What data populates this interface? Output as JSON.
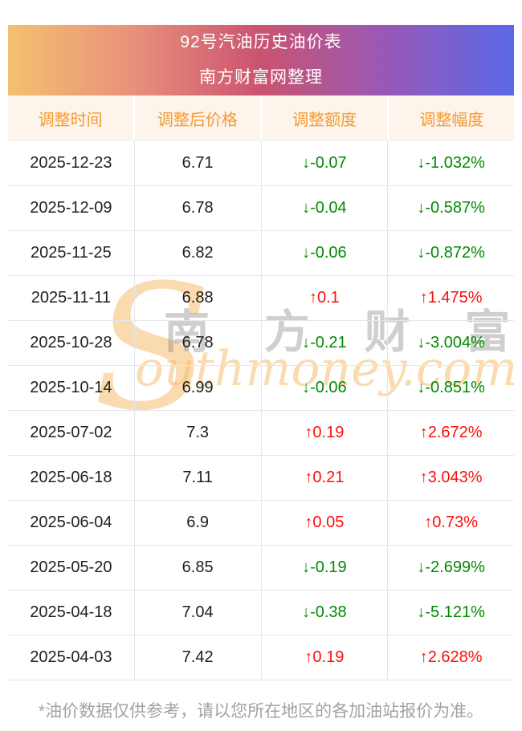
{
  "chart_data": {
    "type": "table",
    "title": "92号汽油历史油价表",
    "subtitle": "南方财富网整理",
    "columns": [
      "调整时间",
      "调整后价格",
      "调整额度",
      "调整幅度"
    ],
    "rows": [
      {
        "date": "2025-12-23",
        "price": "6.71",
        "change": "↓-0.07",
        "change_pct": "↓-1.032%",
        "direction": "down"
      },
      {
        "date": "2025-12-09",
        "price": "6.78",
        "change": "↓-0.04",
        "change_pct": "↓-0.587%",
        "direction": "down"
      },
      {
        "date": "2025-11-25",
        "price": "6.82",
        "change": "↓-0.06",
        "change_pct": "↓-0.872%",
        "direction": "down"
      },
      {
        "date": "2025-11-11",
        "price": "6.88",
        "change": "↑0.1",
        "change_pct": "↑1.475%",
        "direction": "up"
      },
      {
        "date": "2025-10-28",
        "price": "6.78",
        "change": "↓-0.21",
        "change_pct": "↓-3.004%",
        "direction": "down"
      },
      {
        "date": "2025-10-14",
        "price": "6.99",
        "change": "↓-0.06",
        "change_pct": "↓-0.851%",
        "direction": "down"
      },
      {
        "date": "2025-07-02",
        "price": "7.3",
        "change": "↑0.19",
        "change_pct": "↑2.672%",
        "direction": "up"
      },
      {
        "date": "2025-06-18",
        "price": "7.11",
        "change": "↑0.21",
        "change_pct": "↑3.043%",
        "direction": "up"
      },
      {
        "date": "2025-06-04",
        "price": "6.9",
        "change": "↑0.05",
        "change_pct": "↑0.73%",
        "direction": "up"
      },
      {
        "date": "2025-05-20",
        "price": "6.85",
        "change": "↓-0.19",
        "change_pct": "↓-2.699%",
        "direction": "down"
      },
      {
        "date": "2025-04-18",
        "price": "7.04",
        "change": "↓-0.38",
        "change_pct": "↓-5.121%",
        "direction": "down"
      },
      {
        "date": "2025-04-03",
        "price": "7.42",
        "change": "↑0.19",
        "change_pct": "↑2.628%",
        "direction": "up"
      }
    ]
  },
  "watermark": {
    "initial": "S",
    "cn_text": "南 方 财 富 网",
    "en_text": "outhmoney.com"
  },
  "footer": {
    "note": "*油价数据仅供参考，请以您所在地区的各加油站报价为准。"
  },
  "colors": {
    "up_red": "#fe0d0d",
    "down_green": "#008a00",
    "header_text_orange": "#f39b34",
    "header_bg_cream": "#fdf4ec",
    "banner_gradient_left": "#f4c06e",
    "banner_gradient_right": "#5a68e7"
  }
}
